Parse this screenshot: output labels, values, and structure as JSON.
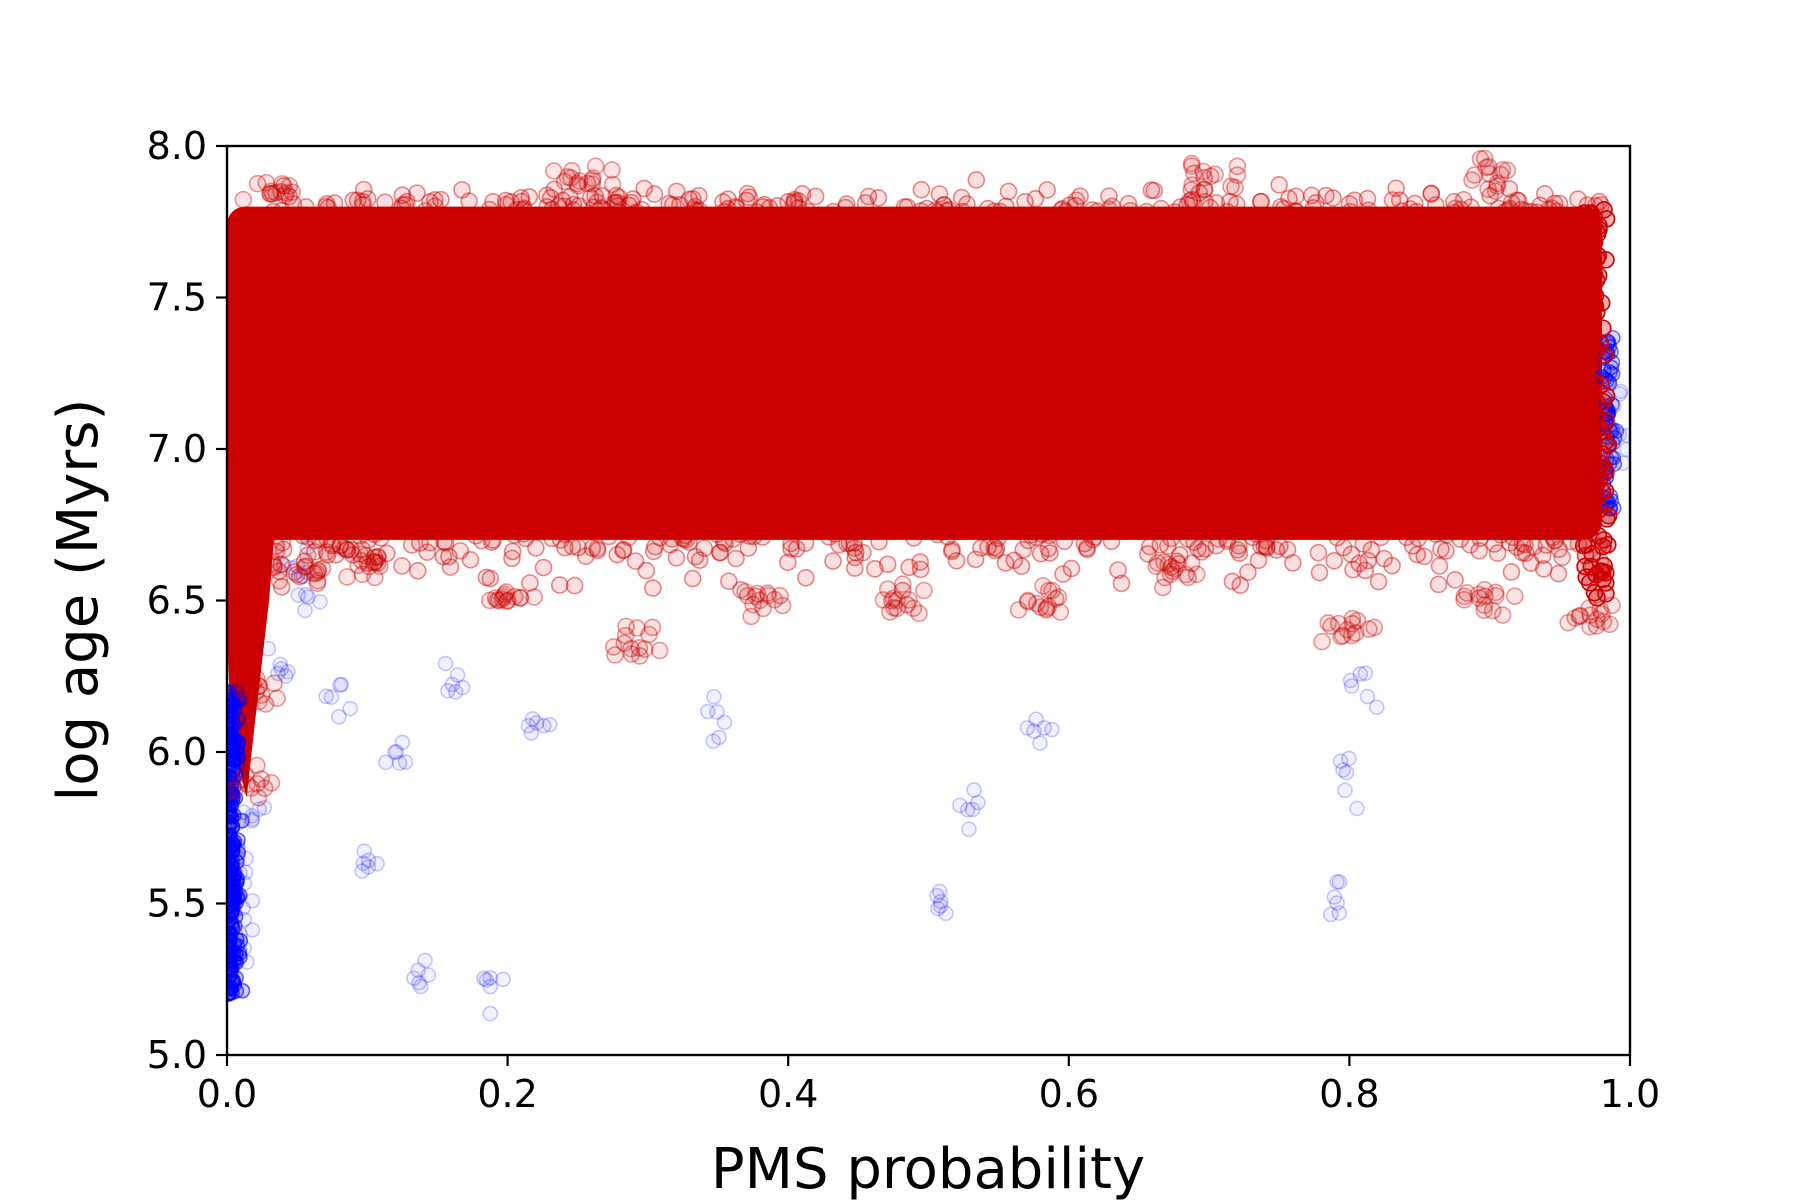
{
  "chart_data": {
    "type": "scatter",
    "title": "",
    "xlabel": "PMS probability",
    "ylabel": "log age (Myrs)",
    "xlim": [
      0.0,
      1.0
    ],
    "ylim": [
      5.0,
      8.0
    ],
    "xticks": [
      "0.0",
      "0.2",
      "0.4",
      "0.6",
      "0.8",
      "1.0"
    ],
    "yticks": [
      "5.0",
      "5.5",
      "6.0",
      "6.5",
      "7.0",
      "7.5",
      "8.0"
    ],
    "grid": false,
    "legend": "none",
    "marker": "open-circle",
    "series": [
      {
        "color": "#0000ff",
        "alpha": 0.05,
        "description_points": [
          {
            "x": 0.005,
            "y": 5.3
          },
          {
            "x": 0.005,
            "y": 5.5
          },
          {
            "x": 0.005,
            "y": 5.7
          },
          {
            "x": 0.006,
            "y": 5.9
          },
          {
            "x": 0.008,
            "y": 5.4
          },
          {
            "x": 0.01,
            "y": 5.6
          },
          {
            "x": 0.02,
            "y": 5.8
          },
          {
            "x": 0.04,
            "y": 6.3
          },
          {
            "x": 0.05,
            "y": 6.6
          },
          {
            "x": 0.06,
            "y": 6.5
          },
          {
            "x": 0.08,
            "y": 6.2
          },
          {
            "x": 0.1,
            "y": 5.6
          },
          {
            "x": 0.12,
            "y": 6.0
          },
          {
            "x": 0.14,
            "y": 5.3
          },
          {
            "x": 0.16,
            "y": 6.2
          },
          {
            "x": 0.19,
            "y": 5.2
          },
          {
            "x": 0.22,
            "y": 6.1
          },
          {
            "x": 0.35,
            "y": 6.1
          },
          {
            "x": 0.51,
            "y": 5.5
          },
          {
            "x": 0.53,
            "y": 5.8
          },
          {
            "x": 0.58,
            "y": 6.1
          },
          {
            "x": 0.79,
            "y": 5.5
          },
          {
            "x": 0.8,
            "y": 5.9
          },
          {
            "x": 0.81,
            "y": 6.2
          },
          {
            "x": 0.99,
            "y": 7.2
          },
          {
            "x": 0.99,
            "y": 7.0
          },
          {
            "x": 0.98,
            "y": 6.9
          }
        ]
      },
      {
        "color": "#cc0000",
        "alpha": 0.1,
        "core_band": {
          "x": [
            0.0,
            0.98
          ],
          "y": [
            6.7,
            7.8
          ]
        },
        "description_points": [
          {
            "x": 0.01,
            "y": 5.9
          },
          {
            "x": 0.02,
            "y": 6.2
          },
          {
            "x": 0.05,
            "y": 6.6
          },
          {
            "x": 0.1,
            "y": 6.6
          },
          {
            "x": 0.2,
            "y": 6.5
          },
          {
            "x": 0.29,
            "y": 6.35
          },
          {
            "x": 0.38,
            "y": 6.5
          },
          {
            "x": 0.48,
            "y": 6.5
          },
          {
            "x": 0.58,
            "y": 6.5
          },
          {
            "x": 0.68,
            "y": 6.6
          },
          {
            "x": 0.8,
            "y": 6.4
          },
          {
            "x": 0.9,
            "y": 6.5
          },
          {
            "x": 0.97,
            "y": 6.45
          },
          {
            "x": 0.9,
            "y": 7.9
          },
          {
            "x": 0.7,
            "y": 7.9
          },
          {
            "x": 0.25,
            "y": 7.9
          },
          {
            "x": 0.03,
            "y": 7.85
          }
        ]
      }
    ]
  }
}
